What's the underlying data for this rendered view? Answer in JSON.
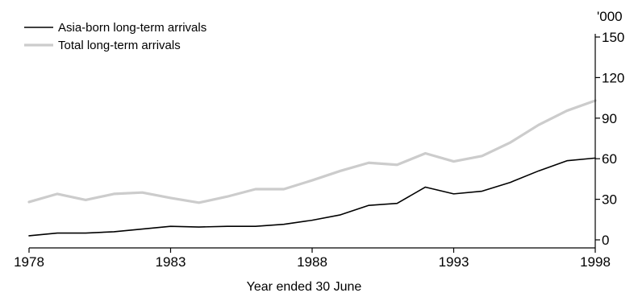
{
  "chart_data": {
    "type": "line",
    "xlabel": "Year ended 30 June",
    "ylabel": "",
    "unit_label": "'000",
    "xlim": [
      1978,
      1998
    ],
    "ylim": [
      0,
      150
    ],
    "x_ticks": [
      1978,
      1983,
      1988,
      1993,
      1998
    ],
    "y_ticks": [
      0,
      30,
      60,
      90,
      120,
      150
    ],
    "y_axis_position": "right",
    "grid": false,
    "legend_position": "top-left",
    "x": [
      1978,
      1979,
      1980,
      1981,
      1982,
      1983,
      1984,
      1985,
      1986,
      1987,
      1988,
      1989,
      1990,
      1991,
      1992,
      1993,
      1994,
      1995,
      1996,
      1997,
      1998
    ],
    "series": [
      {
        "name": "Asia-born long-term arrivals",
        "color": "#000000",
        "values": [
          3,
          5,
          5,
          6,
          8,
          10,
          9.5,
          10,
          10,
          11.5,
          14.5,
          18.5,
          25.5,
          27,
          39,
          34,
          36,
          42.5,
          51,
          58.5,
          60.5
        ]
      },
      {
        "name": "Total long-term arrivals",
        "color": "#cccccc",
        "values": [
          28,
          34,
          29.5,
          34,
          35,
          31,
          27.5,
          32,
          37.5,
          37.5,
          44,
          51,
          57,
          55.5,
          64,
          58,
          62,
          72,
          85,
          95.5,
          103
        ]
      }
    ]
  }
}
